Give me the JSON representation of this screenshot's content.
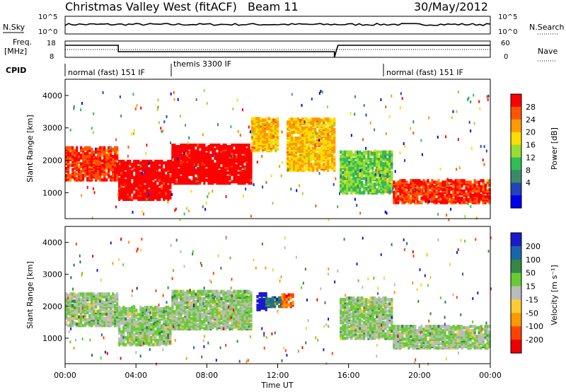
{
  "header": {
    "title": "Christmas Valley West (fitACF)",
    "beam": "Beam 11",
    "date": "30/May/2012"
  },
  "noise_panel": {
    "left_label": "N.Sky",
    "right_label": "N.Search",
    "left_ticks": [
      "10^5",
      "10^0"
    ],
    "right_ticks": [
      "10^5",
      "10^0"
    ]
  },
  "freq_panel": {
    "left_label_1": "Freq.",
    "left_label_2": "[MHz]",
    "right_label": "Nave",
    "left_ticks": [
      "18",
      "8"
    ],
    "right_ticks": [
      "60",
      "0"
    ]
  },
  "cpid": {
    "label": "CPID",
    "segments": [
      {
        "start_hour": 0,
        "label": "normal (fast) 151 IF"
      },
      {
        "start_hour": 6,
        "label": "themis 3300 IF"
      },
      {
        "start_hour": 18,
        "label": "normal (fast) 151 IF"
      }
    ]
  },
  "axes": {
    "ylabel": "Slant Range [km]",
    "xlabel": "Time UT",
    "y_ticks": [
      "1000",
      "2000",
      "3000",
      "4000"
    ],
    "x_ticks": [
      "00:00",
      "04:00",
      "08:00",
      "12:00",
      "16:00",
      "20:00",
      "00:00"
    ]
  },
  "power_scale": {
    "label": "Power [dB]",
    "ticks": [
      "28",
      "24",
      "20",
      "16",
      "12",
      "8",
      "4"
    ],
    "colors": [
      "#ff0000",
      "#ff5500",
      "#ff9900",
      "#ffdd00",
      "#99dd33",
      "#33bb55",
      "#3a8a6a",
      "#2244bb",
      "#0000ee"
    ]
  },
  "velocity_scale": {
    "label": "Velocity [m s⁻¹]",
    "ticks": [
      "200",
      "100",
      "50",
      "15",
      "-15",
      "-50",
      "-100",
      "-200"
    ],
    "colors": [
      "#1a1acc",
      "#1a66aa",
      "#338844",
      "#66cc33",
      "#bbbbbb",
      "#ffcc33",
      "#ff9900",
      "#ff4400",
      "#ee0000"
    ]
  },
  "chart_data": [
    {
      "type": "heatmap",
      "title": "Power",
      "xlabel": "Time UT",
      "ylabel": "Slant Range [km]",
      "x_range_hours": [
        0,
        24
      ],
      "y_range_km": [
        200,
        4500
      ],
      "colorbar_label": "Power [dB]",
      "colorbar_ticks": [
        4,
        8,
        12,
        16,
        20,
        24,
        28
      ],
      "regions": [
        {
          "t0": 0.0,
          "t1": 3.0,
          "r0": 1400,
          "r1": 2400,
          "level": 26
        },
        {
          "t0": 3.0,
          "t1": 6.0,
          "r0": 800,
          "r1": 2000,
          "level": 28
        },
        {
          "t0": 6.0,
          "t1": 10.5,
          "r0": 1300,
          "r1": 2500,
          "level": 27
        },
        {
          "t0": 10.5,
          "t1": 12.0,
          "r0": 2300,
          "r1": 3300,
          "level": 16
        },
        {
          "t0": 12.5,
          "t1": 15.2,
          "r0": 1700,
          "r1": 3300,
          "level": 18
        },
        {
          "t0": 15.5,
          "t1": 18.5,
          "r0": 1000,
          "r1": 2300,
          "level": 12
        },
        {
          "t0": 18.5,
          "t1": 24.0,
          "r0": 700,
          "r1": 1400,
          "level": 24
        }
      ]
    },
    {
      "type": "heatmap",
      "title": "Velocity",
      "xlabel": "Time UT",
      "ylabel": "Slant Range [km]",
      "x_range_hours": [
        0,
        24
      ],
      "y_range_km": [
        200,
        4500
      ],
      "colorbar_label": "Velocity [m s⁻¹]",
      "colorbar_ticks": [
        -200,
        -100,
        -50,
        -15,
        15,
        50,
        100,
        200
      ],
      "regions": [
        {
          "t0": 0.0,
          "t1": 3.0,
          "r0": 1400,
          "r1": 2400,
          "level": 0
        },
        {
          "t0": 3.0,
          "t1": 6.0,
          "r0": 800,
          "r1": 2000,
          "level": 0
        },
        {
          "t0": 6.0,
          "t1": 10.5,
          "r0": 1300,
          "r1": 2500,
          "level": 0
        },
        {
          "t0": 10.8,
          "t1": 11.3,
          "r0": 1900,
          "r1": 2400,
          "level": 220
        },
        {
          "t0": 11.3,
          "t1": 12.2,
          "r0": 2000,
          "r1": 2300,
          "level": 60
        },
        {
          "t0": 12.2,
          "t1": 12.8,
          "r0": 2000,
          "r1": 2400,
          "level": -120
        },
        {
          "t0": 15.5,
          "t1": 18.5,
          "r0": 1000,
          "r1": 2300,
          "level": 0
        },
        {
          "t0": 18.5,
          "t1": 24.0,
          "r0": 700,
          "r1": 1400,
          "level": 0
        }
      ]
    }
  ]
}
